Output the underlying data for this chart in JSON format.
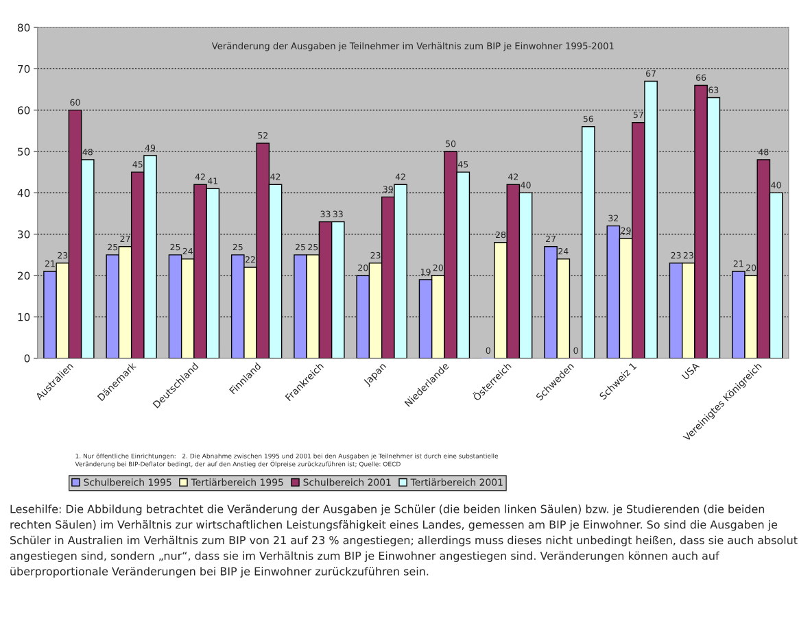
{
  "chart_data": {
    "type": "bar",
    "title": "Veränderung der Ausgaben je Teilnehmer im Verhältnis zum BIP je Einwohner 1995-2001",
    "categories": [
      "Australien",
      "Dänemark",
      "Deutschland",
      "Finnland",
      "Frankreich",
      "Japan",
      "Niederlande",
      "Österreich",
      "Schweden",
      "Schweiz 1",
      "USA",
      "Vereinigtes Königreich"
    ],
    "series": [
      {
        "name": "Schulbereich 1995",
        "color": "#9999ff",
        "values": [
          21,
          25,
          25,
          25,
          25,
          20,
          19,
          0,
          27,
          32,
          23,
          21
        ]
      },
      {
        "name": "Tertiärbereich 1995",
        "color": "#ffffcc",
        "values": [
          23,
          27,
          24,
          22,
          25,
          23,
          20,
          28,
          24,
          29,
          23,
          20
        ]
      },
      {
        "name": "Schulbereich 2001",
        "color": "#993366",
        "values": [
          60,
          45,
          42,
          52,
          33,
          39,
          50,
          42,
          0,
          57,
          66,
          48
        ]
      },
      {
        "name": "Tertiärbereich 2001",
        "color": "#ccffff",
        "values": [
          48,
          49,
          41,
          42,
          33,
          42,
          45,
          40,
          56,
          67,
          63,
          40
        ]
      }
    ],
    "ylim": [
      0,
      80
    ],
    "yticks": [
      0,
      10,
      20,
      30,
      40,
      50,
      60,
      70,
      80
    ],
    "grid": "y",
    "data_labels": true,
    "legend": "bottom",
    "annotations": [
      "1. Nur öffentliche Einrichtungen:   2. Die Abnahme zwischen 1995 und 2001 bei den Ausgaben je Teilnehmer ist durch eine substantielle\nVeränderung bei BIP-Deflator bedingt, der auf den Anstieg der Ölpreise zurückzuführen ist; Quelle: OECD",
      "Lesehilfe: Die Abbildung betrachtet die Veränderung der Ausgaben je Schüler (die beiden linken Säulen) bzw. je Studierenden (die beiden rechten Säulen) im Verhältnis zur wirtschaftlichen Leistungsfähigkeit eines Landes, gemessen am BIP je Einwohner. So sind die Ausgaben je Schüler in Australien im Verhältnis zum BIP von 21 auf 23 % angestiegen; allerdings muss dieses nicht unbedingt heißen, dass sie auch absolut angestiegen sind, sondern „nur“, dass sie im Verhältnis zum BIP je Einwohner angestiegen sind. Veränderungen können auch auf überproportionale Veränderungen bei BIP je Einwohner zurückzuführen sein."
    ]
  }
}
